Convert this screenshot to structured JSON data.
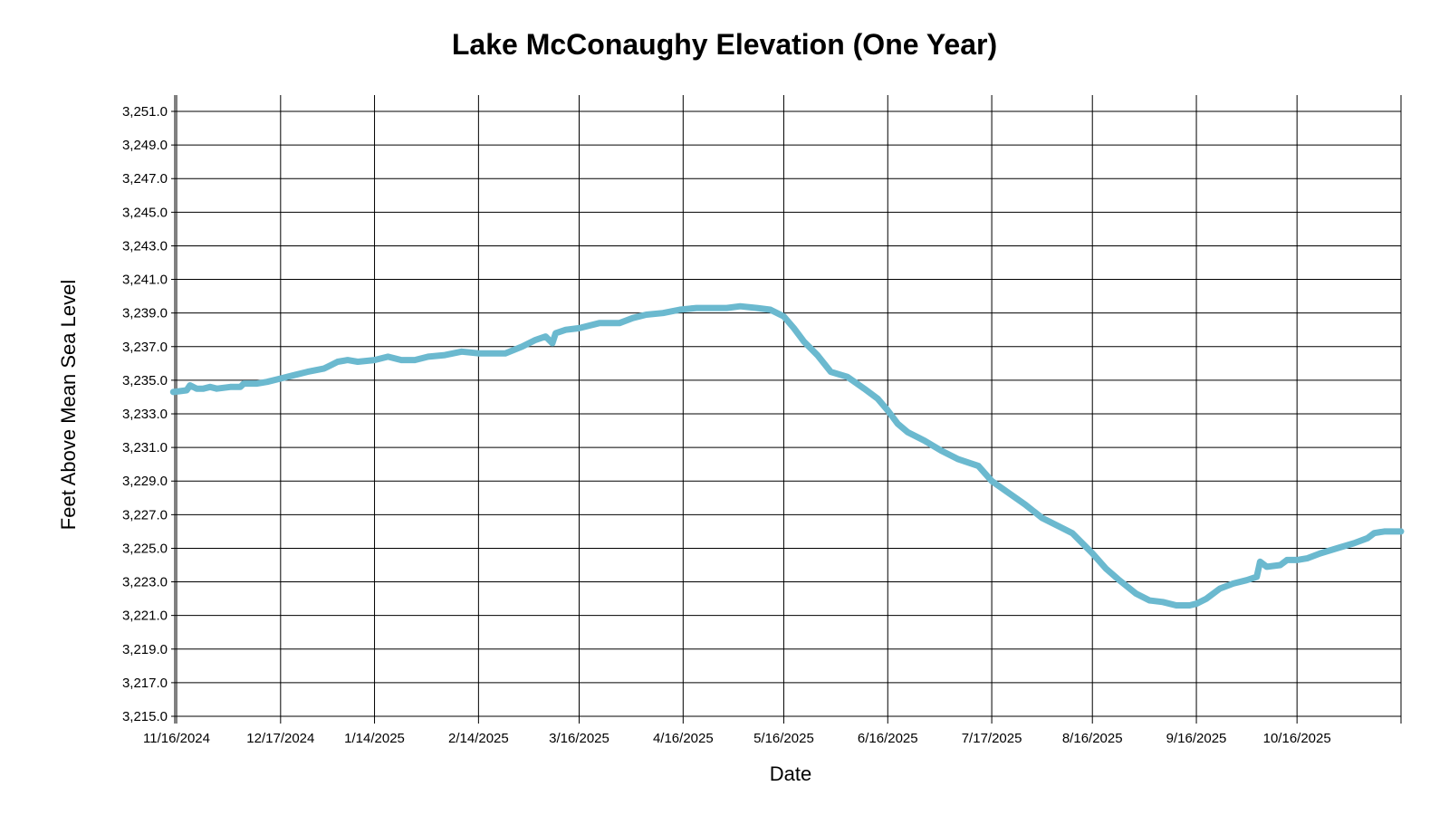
{
  "chart_data": {
    "type": "line",
    "title": "Lake McConaughy Elevation (One Year)",
    "xlabel": "Date",
    "ylabel": "Feet Above Mean Sea Level",
    "ylim": [
      3215.0,
      3251.0
    ],
    "xlim": [
      "2024-11-16",
      "2025-11-16"
    ],
    "y_ticks": [
      "3,215.0",
      "3,217.0",
      "3,219.0",
      "3,221.0",
      "3,223.0",
      "3,225.0",
      "3,227.0",
      "3,229.0",
      "3,231.0",
      "3,233.0",
      "3,235.0",
      "3,237.0",
      "3,239.0",
      "3,241.0",
      "3,243.0",
      "3,245.0",
      "3,247.0",
      "3,249.0",
      "3,251.0"
    ],
    "x_ticks": [
      {
        "date": "2024-11-16",
        "label": "11/16/2024"
      },
      {
        "date": "2024-12-17",
        "label": "12/17/2024"
      },
      {
        "date": "2025-01-14",
        "label": "1/14/2025"
      },
      {
        "date": "2025-02-14",
        "label": "2/14/2025"
      },
      {
        "date": "2025-03-16",
        "label": "3/16/2025"
      },
      {
        "date": "2025-04-16",
        "label": "4/16/2025"
      },
      {
        "date": "2025-05-16",
        "label": "5/16/2025"
      },
      {
        "date": "2025-06-16",
        "label": "6/16/2025"
      },
      {
        "date": "2025-07-17",
        "label": "7/17/2025"
      },
      {
        "date": "2025-08-16",
        "label": "8/16/2025"
      },
      {
        "date": "2025-09-16",
        "label": "9/16/2025"
      },
      {
        "date": "2025-10-16",
        "label": "10/16/2025"
      }
    ],
    "grid": true,
    "series": [
      {
        "color": "#6bb9cf",
        "points": [
          [
            "2024-11-15",
            3234.3
          ],
          [
            "2024-11-19",
            3234.4
          ],
          [
            "2024-11-20",
            3234.7
          ],
          [
            "2024-11-22",
            3234.5
          ],
          [
            "2024-11-24",
            3234.5
          ],
          [
            "2024-11-26",
            3234.6
          ],
          [
            "2024-11-28",
            3234.5
          ],
          [
            "2024-12-02",
            3234.6
          ],
          [
            "2024-12-05",
            3234.6
          ],
          [
            "2024-12-06",
            3234.8
          ],
          [
            "2024-12-10",
            3234.8
          ],
          [
            "2024-12-13",
            3234.9
          ],
          [
            "2024-12-17",
            3235.1
          ],
          [
            "2024-12-21",
            3235.3
          ],
          [
            "2024-12-25",
            3235.5
          ],
          [
            "2024-12-30",
            3235.7
          ],
          [
            "2025-01-01",
            3235.9
          ],
          [
            "2025-01-03",
            3236.1
          ],
          [
            "2025-01-06",
            3236.2
          ],
          [
            "2025-01-09",
            3236.1
          ],
          [
            "2025-01-14",
            3236.2
          ],
          [
            "2025-01-18",
            3236.4
          ],
          [
            "2025-01-22",
            3236.2
          ],
          [
            "2025-01-26",
            3236.2
          ],
          [
            "2025-01-30",
            3236.4
          ],
          [
            "2025-02-04",
            3236.5
          ],
          [
            "2025-02-09",
            3236.7
          ],
          [
            "2025-02-14",
            3236.6
          ],
          [
            "2025-02-18",
            3236.6
          ],
          [
            "2025-02-22",
            3236.6
          ],
          [
            "2025-02-27",
            3237.0
          ],
          [
            "2025-03-03",
            3237.4
          ],
          [
            "2025-03-06",
            3237.6
          ],
          [
            "2025-03-08",
            3237.2
          ],
          [
            "2025-03-09",
            3237.8
          ],
          [
            "2025-03-12",
            3238.0
          ],
          [
            "2025-03-16",
            3238.1
          ],
          [
            "2025-03-22",
            3238.4
          ],
          [
            "2025-03-28",
            3238.4
          ],
          [
            "2025-04-01",
            3238.7
          ],
          [
            "2025-04-05",
            3238.9
          ],
          [
            "2025-04-10",
            3239.0
          ],
          [
            "2025-04-15",
            3239.2
          ],
          [
            "2025-04-20",
            3239.3
          ],
          [
            "2025-04-25",
            3239.3
          ],
          [
            "2025-04-29",
            3239.3
          ],
          [
            "2025-05-03",
            3239.4
          ],
          [
            "2025-05-08",
            3239.3
          ],
          [
            "2025-05-12",
            3239.2
          ],
          [
            "2025-05-16",
            3238.8
          ],
          [
            "2025-05-19",
            3238.1
          ],
          [
            "2025-05-22",
            3237.3
          ],
          [
            "2025-05-26",
            3236.5
          ],
          [
            "2025-05-30",
            3235.5
          ],
          [
            "2025-06-04",
            3235.2
          ],
          [
            "2025-06-09",
            3234.5
          ],
          [
            "2025-06-13",
            3233.9
          ],
          [
            "2025-06-16",
            3233.2
          ],
          [
            "2025-06-19",
            3232.4
          ],
          [
            "2025-06-22",
            3231.9
          ],
          [
            "2025-06-27",
            3231.4
          ],
          [
            "2025-07-02",
            3230.8
          ],
          [
            "2025-07-07",
            3230.3
          ],
          [
            "2025-07-13",
            3229.9
          ],
          [
            "2025-07-17",
            3229.0
          ],
          [
            "2025-07-22",
            3228.3
          ],
          [
            "2025-07-27",
            3227.6
          ],
          [
            "2025-08-01",
            3226.8
          ],
          [
            "2025-08-06",
            3226.3
          ],
          [
            "2025-08-10",
            3225.9
          ],
          [
            "2025-08-13",
            3225.3
          ],
          [
            "2025-08-16",
            3224.7
          ],
          [
            "2025-08-20",
            3223.8
          ],
          [
            "2025-08-24",
            3223.1
          ],
          [
            "2025-08-29",
            3222.3
          ],
          [
            "2025-09-02",
            3221.9
          ],
          [
            "2025-09-06",
            3221.8
          ],
          [
            "2025-09-10",
            3221.6
          ],
          [
            "2025-09-14",
            3221.6
          ],
          [
            "2025-09-16",
            3221.7
          ],
          [
            "2025-09-19",
            3222.0
          ],
          [
            "2025-09-23",
            3222.6
          ],
          [
            "2025-09-27",
            3222.9
          ],
          [
            "2025-10-01",
            3223.1
          ],
          [
            "2025-10-04",
            3223.3
          ],
          [
            "2025-10-05",
            3224.2
          ],
          [
            "2025-10-07",
            3223.9
          ],
          [
            "2025-10-11",
            3224.0
          ],
          [
            "2025-10-13",
            3224.3
          ],
          [
            "2025-10-16",
            3224.3
          ],
          [
            "2025-10-19",
            3224.4
          ],
          [
            "2025-10-23",
            3224.7
          ],
          [
            "2025-10-28",
            3225.0
          ],
          [
            "2025-11-02",
            3225.3
          ],
          [
            "2025-11-06",
            3225.6
          ],
          [
            "2025-11-08",
            3225.9
          ],
          [
            "2025-11-11",
            3226.0
          ],
          [
            "2025-11-16",
            3226.0
          ]
        ]
      }
    ]
  }
}
